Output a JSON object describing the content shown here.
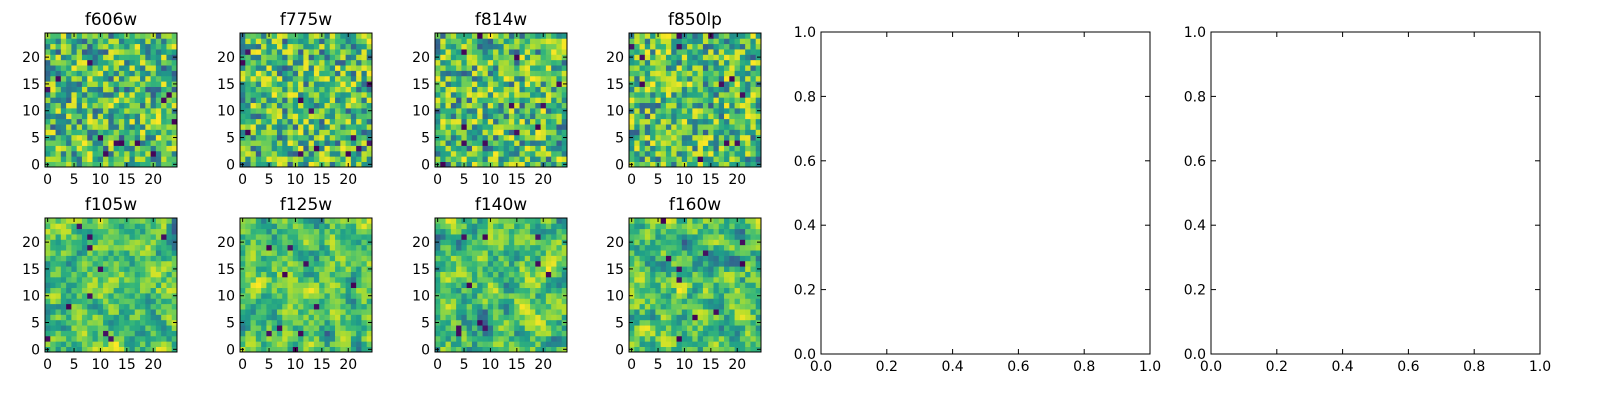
{
  "chart_data": [
    {
      "type": "heatmap",
      "title": "f606w",
      "nx": 25,
      "ny": 25,
      "xlim": [
        -0.5,
        24.5
      ],
      "ylim": [
        -0.5,
        24.5
      ],
      "xticks": [
        0,
        5,
        10,
        15,
        20
      ],
      "yticks": [
        0,
        5,
        10,
        15,
        20
      ],
      "colormap": "viridis",
      "smooth": false,
      "seed": 11
    },
    {
      "type": "heatmap",
      "title": "f775w",
      "nx": 25,
      "ny": 25,
      "xlim": [
        -0.5,
        24.5
      ],
      "ylim": [
        -0.5,
        24.5
      ],
      "xticks": [
        0,
        5,
        10,
        15,
        20
      ],
      "yticks": [
        0,
        5,
        10,
        15,
        20
      ],
      "colormap": "viridis",
      "smooth": false,
      "seed": 23
    },
    {
      "type": "heatmap",
      "title": "f814w",
      "nx": 25,
      "ny": 25,
      "xlim": [
        -0.5,
        24.5
      ],
      "ylim": [
        -0.5,
        24.5
      ],
      "xticks": [
        0,
        5,
        10,
        15,
        20
      ],
      "yticks": [
        0,
        5,
        10,
        15,
        20
      ],
      "colormap": "viridis",
      "smooth": false,
      "seed": 37
    },
    {
      "type": "heatmap",
      "title": "f850lp",
      "nx": 25,
      "ny": 25,
      "xlim": [
        -0.5,
        24.5
      ],
      "ylim": [
        -0.5,
        24.5
      ],
      "xticks": [
        0,
        5,
        10,
        15,
        20
      ],
      "yticks": [
        0,
        5,
        10,
        15,
        20
      ],
      "colormap": "viridis",
      "smooth": false,
      "seed": 41
    },
    {
      "type": "heatmap",
      "title": "f105w",
      "nx": 25,
      "ny": 25,
      "xlim": [
        -0.5,
        24.5
      ],
      "ylim": [
        -0.5,
        24.5
      ],
      "xticks": [
        0,
        5,
        10,
        15,
        20
      ],
      "yticks": [
        0,
        5,
        10,
        15,
        20
      ],
      "colormap": "viridis",
      "smooth": true,
      "seed": 53
    },
    {
      "type": "heatmap",
      "title": "f125w",
      "nx": 25,
      "ny": 25,
      "xlim": [
        -0.5,
        24.5
      ],
      "ylim": [
        -0.5,
        24.5
      ],
      "xticks": [
        0,
        5,
        10,
        15,
        20
      ],
      "yticks": [
        0,
        5,
        10,
        15,
        20
      ],
      "colormap": "viridis",
      "smooth": true,
      "seed": 67
    },
    {
      "type": "heatmap",
      "title": "f140w",
      "nx": 25,
      "ny": 25,
      "xlim": [
        -0.5,
        24.5
      ],
      "ylim": [
        -0.5,
        24.5
      ],
      "xticks": [
        0,
        5,
        10,
        15,
        20
      ],
      "yticks": [
        0,
        5,
        10,
        15,
        20
      ],
      "colormap": "viridis",
      "smooth": true,
      "seed": 79
    },
    {
      "type": "heatmap",
      "title": "f160w",
      "nx": 25,
      "ny": 25,
      "xlim": [
        -0.5,
        24.5
      ],
      "ylim": [
        -0.5,
        24.5
      ],
      "xticks": [
        0,
        5,
        10,
        15,
        20
      ],
      "yticks": [
        0,
        5,
        10,
        15,
        20
      ],
      "colormap": "viridis",
      "smooth": true,
      "seed": 97
    },
    {
      "type": "scatter",
      "title": "",
      "series": [],
      "xlim": [
        0.0,
        1.0
      ],
      "ylim": [
        0.0,
        1.0
      ],
      "xticks": [
        "0.0",
        "0.2",
        "0.4",
        "0.6",
        "0.8",
        "1.0"
      ],
      "yticks": [
        "0.0",
        "0.2",
        "0.4",
        "0.6",
        "0.8",
        "1.0"
      ]
    },
    {
      "type": "scatter",
      "title": "",
      "series": [],
      "xlim": [
        0.0,
        1.0
      ],
      "ylim": [
        0.0,
        1.0
      ],
      "xticks": [
        "0.0",
        "0.2",
        "0.4",
        "0.6",
        "0.8",
        "1.0"
      ],
      "yticks": [
        "0.0",
        "0.2",
        "0.4",
        "0.6",
        "0.8",
        "1.0"
      ]
    }
  ]
}
